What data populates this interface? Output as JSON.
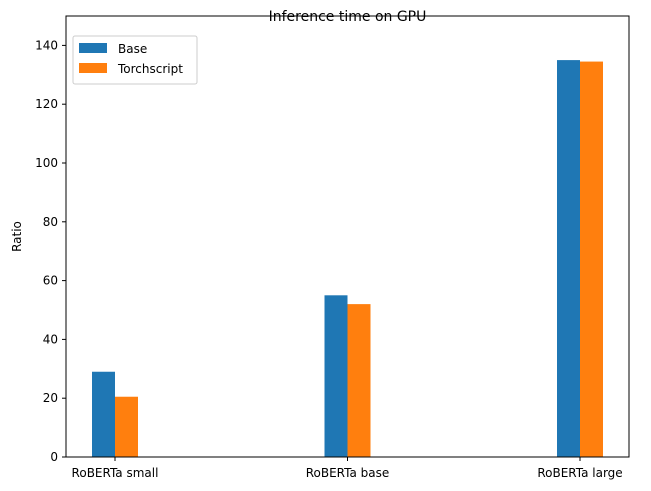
{
  "chart_data": {
    "type": "bar",
    "title": "Inference time on GPU",
    "xlabel": "",
    "ylabel": "Ratio",
    "categories": [
      "RoBERTa small",
      "RoBERTa base",
      "RoBERTa large"
    ],
    "series": [
      {
        "name": "Base",
        "color": "#1f77b4",
        "values": [
          29,
          55,
          135
        ]
      },
      {
        "name": "Torchscript",
        "color": "#ff7f0e",
        "values": [
          20.5,
          52,
          134.5
        ]
      }
    ],
    "ylim": [
      0,
      150
    ],
    "yticks": [
      0,
      20,
      40,
      60,
      80,
      100,
      120,
      140
    ],
    "grid": false,
    "legend_position": "top-left"
  }
}
